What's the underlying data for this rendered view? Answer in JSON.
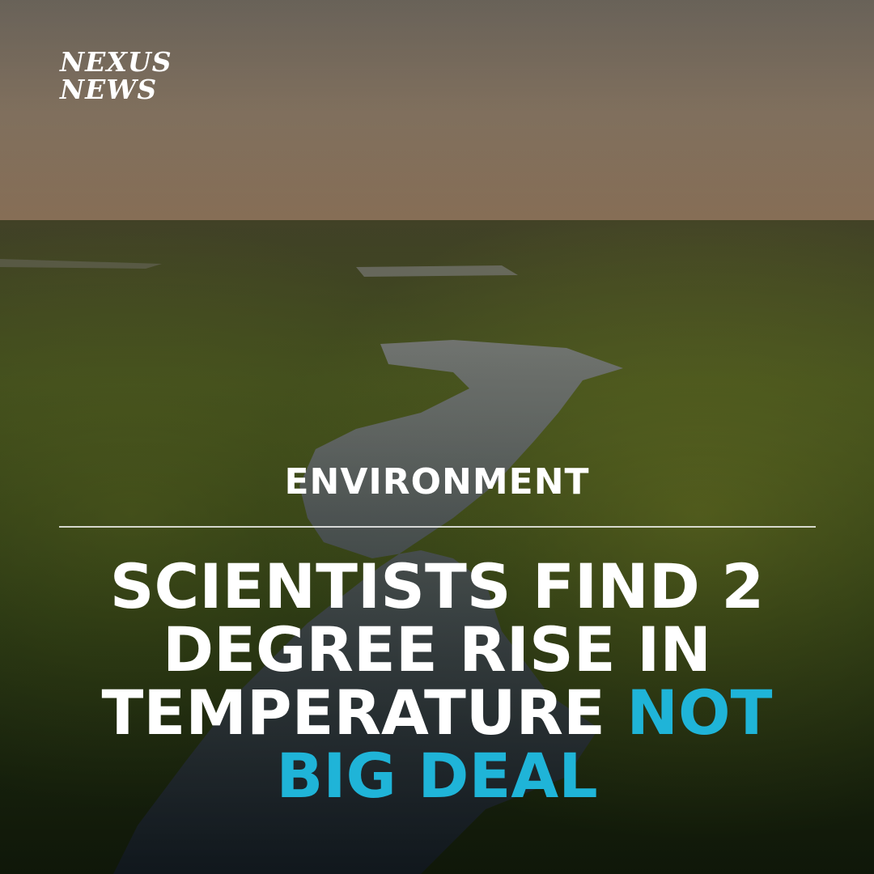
{
  "brand": {
    "line1": "NEXUS",
    "line2": "NEWS"
  },
  "category": "ENVIRONMENT",
  "headline": {
    "plain": "SCIENTISTS FIND 2 DEGREE RISE IN TEMPERATURE",
    "highlight": "NOT BIG DEAL"
  },
  "colors": {
    "highlight": "#1fb4d8",
    "text": "#ffffff"
  }
}
